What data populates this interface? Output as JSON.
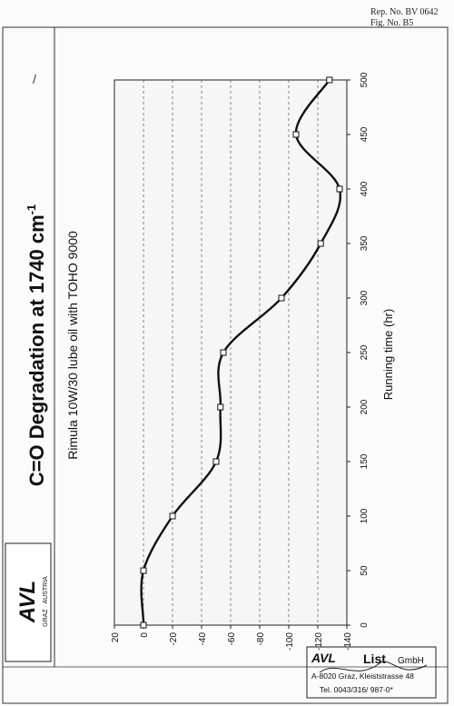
{
  "header": {
    "rep_no": "Rep. No. BV 0642",
    "fig_no": "Fig. No. B5",
    "mark": "/"
  },
  "logo": {
    "brand": "AVL",
    "location": "GRAZ · AUSTRIA"
  },
  "stamp": {
    "brand": "AVL",
    "company": "List",
    "suffix": "GmbH",
    "address": "A-8020 Graz, Kleiststrasse 48",
    "tel": "Tel. 0043/316/ 987-0*"
  },
  "chart_data": {
    "type": "line",
    "title": "C=O Degradation at 1740 cm",
    "title_superscript": "-1",
    "subtitle": "Rimula 10W/30 lube oil with TOHO 9000",
    "xlabel": "Running time (hr)",
    "ylabel": "",
    "xlim": [
      0,
      500
    ],
    "ylim": [
      -140,
      20
    ],
    "x_ticks": [
      0,
      50,
      100,
      150,
      200,
      250,
      300,
      350,
      400,
      450,
      500
    ],
    "y_ticks": [
      20,
      0,
      -20,
      -40,
      -60,
      -80,
      -100,
      -120,
      -140
    ],
    "grid": "horizontal dashed",
    "series": [
      {
        "x": [
          0,
          3,
          50,
          100,
          150,
          200,
          250,
          300,
          350,
          400,
          450,
          500
        ],
        "y": [
          0,
          0,
          0,
          -20,
          -50,
          -53,
          -55,
          -95,
          -122,
          -135,
          -105,
          -128
        ]
      }
    ]
  }
}
